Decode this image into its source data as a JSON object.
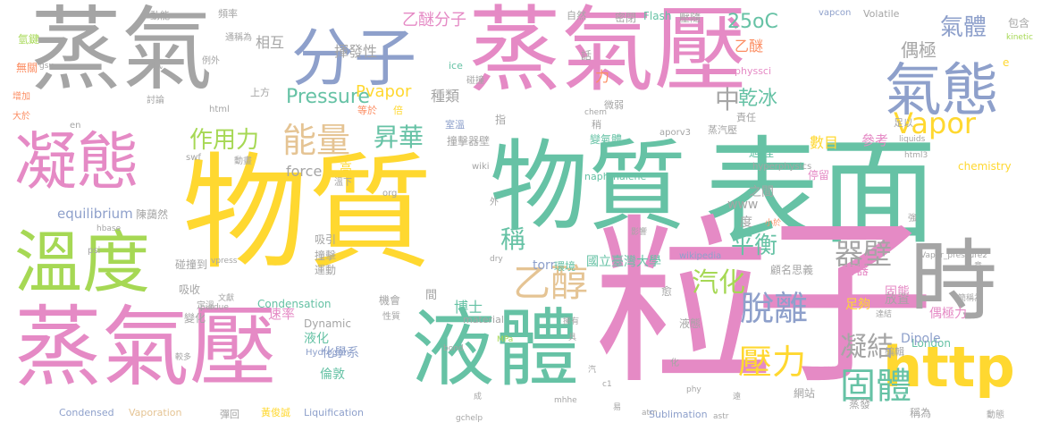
{
  "colors": {
    "gray": "#a5a5a5",
    "pink": "#e58ac5",
    "blue": "#8ea0cb",
    "yellow": "#ffd830",
    "green": "#66c2a5",
    "orange": "#fc8d62",
    "tan": "#e5c494",
    "lime": "#a6d854"
  },
  "words": [
    "蒸氣",
    "物質",
    "蒸氣壓",
    "物質",
    "表面",
    "粒子",
    "液體",
    "蒸氣壓",
    "分子",
    "氣態",
    "凝態",
    "溫度",
    "時",
    "http",
    "Vapor",
    "乙醇",
    "能量",
    "脫離",
    "壓力",
    "凝結",
    "固體",
    "器壁",
    "昇華",
    "作用力",
    "平衡",
    "汽化",
    "稱",
    "中",
    "乾冰",
    "Pressure",
    "乙醚分子",
    "25oC",
    "氣體",
    "偶極",
    "乙醚",
    "相互",
    "揮發性",
    "Pvapor",
    "種類",
    "力",
    "動能",
    "頻率",
    "自然",
    "密閉",
    "Flash",
    "壓隨",
    "vapcon",
    "Volatile",
    "包含",
    "氫鍵",
    "kinetic",
    "通稱為",
    "話",
    "e",
    "低",
    "無關",
    "gsu",
    "例外",
    "ice",
    "碰撞",
    "physsci",
    "上方",
    "微弱",
    "增加",
    "大於",
    "討論",
    "html",
    "指",
    "等於",
    "倍",
    "chem",
    "稍",
    "責任",
    "足以",
    "蒸汽壓",
    "en",
    "室溫",
    "撞擊器壁",
    "變氣體",
    "aporv3",
    "liquids",
    "參考",
    "數目",
    "過程",
    "之間",
    "force",
    "高",
    "swf",
    "動畫",
    "hyperphysics",
    "html3",
    "chemistry",
    "停留",
    "wiki",
    "naphthalene",
    "溫下",
    "org",
    "www",
    "度",
    "陳藹然",
    "equilibrium",
    "吸引",
    "外",
    "小於",
    "強",
    "hbase",
    "psi",
    "torr",
    "國立臺灣大學",
    "環境",
    "wikipedia",
    "影響",
    "顧名思義",
    "容器",
    "撞擊",
    "運動",
    "碰撞到",
    "vpress",
    "dry",
    "Vapor_pressure2",
    "意",
    "吸收",
    "文獻",
    "機會",
    "間",
    "博士",
    "愈",
    "放置",
    "固態",
    "Condensation",
    "purdue",
    "變化",
    "定溫",
    "速率",
    "液化",
    "Dynamic",
    "性質",
    "material",
    "擁有",
    "液態",
    "足夠",
    "偶極力",
    "簡稱為",
    "達結",
    "Hydrogen",
    "化學系",
    "倫敦",
    "bond",
    "MPa",
    "具",
    "London",
    "Dipole",
    "編輯",
    "較多",
    "Condensed",
    "Vaporation",
    "彈回",
    "黃俊誠",
    "Liquification",
    "gchelp",
    "成",
    "易",
    "c1",
    "mhhe",
    "atm",
    "astr",
    "Sublimation",
    "網站",
    "蒸發",
    "稱為",
    "遠",
    "動態",
    "汽",
    "化",
    "phy"
  ]
}
